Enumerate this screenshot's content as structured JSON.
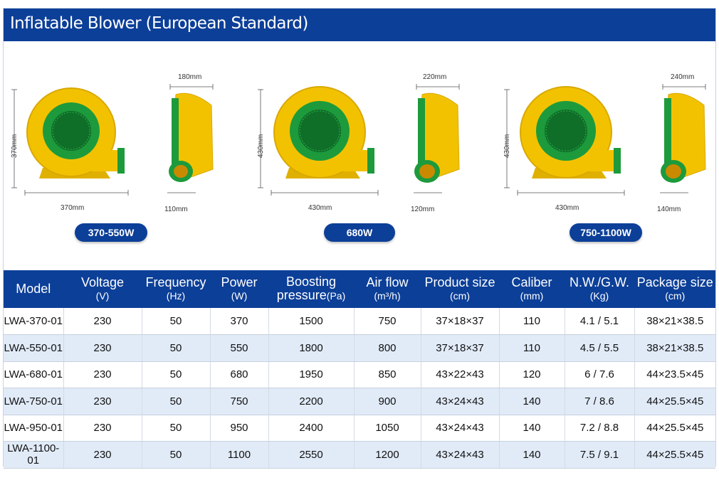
{
  "title": "Inflatable Blower (European Standard)",
  "products": [
    {
      "label": "370-550W",
      "front_width": "370mm",
      "front_height": "370mm",
      "side_top": "180mm",
      "side_bottom": "110mm"
    },
    {
      "label": "680W",
      "front_width": "430mm",
      "front_height": "430mm",
      "side_top": "220mm",
      "side_bottom": "120mm"
    },
    {
      "label": "750-1100W",
      "front_width": "430mm",
      "front_height": "430mm",
      "side_top": "240mm",
      "side_bottom": "140mm"
    }
  ],
  "colors": {
    "brand_blue": "#0c3f98",
    "blower_yellow": "#f2c200",
    "blower_green": "#1d9a3c",
    "row_alt": "#e1ebf8"
  },
  "table": {
    "headers": [
      {
        "name": "Model",
        "unit": ""
      },
      {
        "name": "Voltage",
        "unit": "(V)"
      },
      {
        "name": "Frequency",
        "unit": "(Hz)"
      },
      {
        "name": "Power",
        "unit": "(W)"
      },
      {
        "name": "Boosting",
        "name2": "pressure",
        "unit": "(Pa)"
      },
      {
        "name": "Air flow",
        "unit": "(m³/h)"
      },
      {
        "name": "Product size",
        "unit": "(cm)"
      },
      {
        "name": "Caliber",
        "unit": "(mm)"
      },
      {
        "name": "N.W./G.W.",
        "unit": "(Kg)"
      },
      {
        "name": "Package size",
        "unit": "(cm)"
      }
    ],
    "rows": [
      [
        "LWA-370-01",
        "230",
        "50",
        "370",
        "1500",
        "750",
        "37×18×37",
        "110",
        "4.1 / 5.1",
        "38×21×38.5"
      ],
      [
        "LWA-550-01",
        "230",
        "50",
        "550",
        "1800",
        "800",
        "37×18×37",
        "110",
        "4.5 / 5.5",
        "38×21×38.5"
      ],
      [
        "LWA-680-01",
        "230",
        "50",
        "680",
        "1950",
        "850",
        "43×22×43",
        "120",
        "6 / 7.6",
        "44×23.5×45"
      ],
      [
        "LWA-750-01",
        "230",
        "50",
        "750",
        "2200",
        "900",
        "43×24×43",
        "140",
        "7 / 8.6",
        "44×25.5×45"
      ],
      [
        "LWA-950-01",
        "230",
        "50",
        "950",
        "2400",
        "1050",
        "43×24×43",
        "140",
        "7.2 / 8.8",
        "44×25.5×45"
      ],
      [
        "LWA-1100-01",
        "230",
        "50",
        "1100",
        "2550",
        "1200",
        "43×24×43",
        "140",
        "7.5 / 9.1",
        "44×25.5×45"
      ]
    ]
  }
}
